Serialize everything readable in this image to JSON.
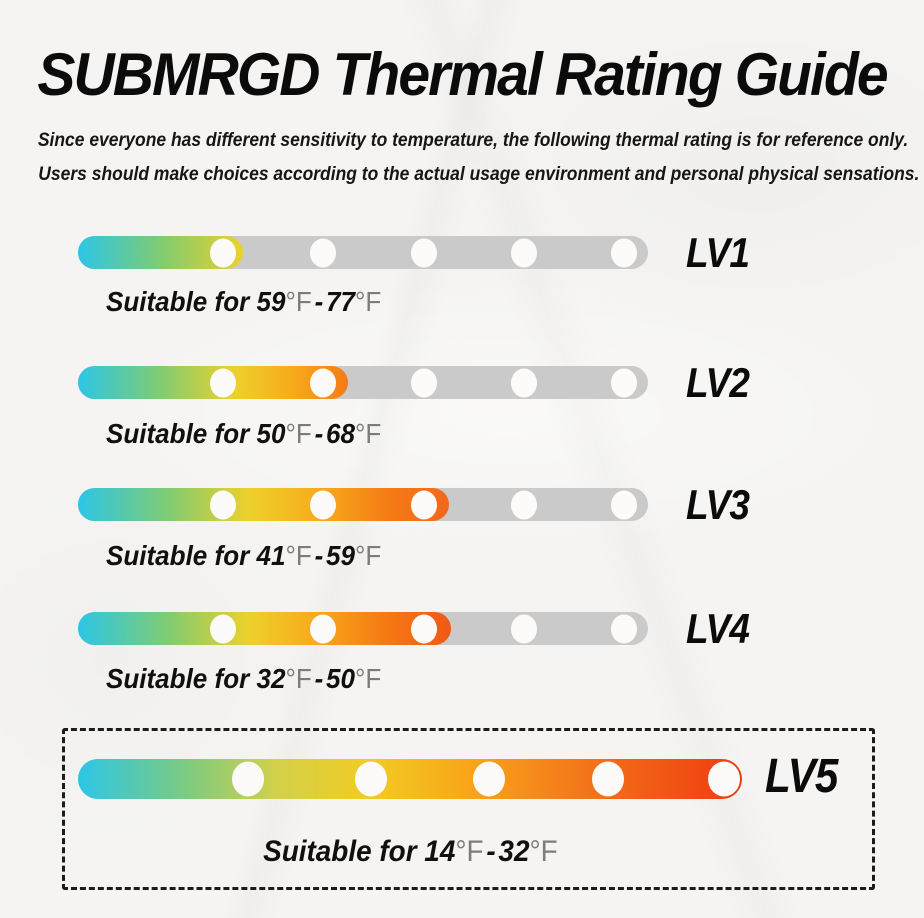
{
  "header": {
    "title": "SUBMRGD Thermal Rating Guide",
    "subtitle_line1": "Since everyone has different sensitivity to temperature, the following thermal rating is for reference only.",
    "subtitle_line2": "Users should make choices according to the actual usage environment and personal physical sensations."
  },
  "degree_unit": "°F",
  "separator": "-",
  "levels": [
    {
      "label": "LV1",
      "prefix": "Suitable for",
      "low": "59",
      "high": "77",
      "fill_percent": 29,
      "dots_total": 5,
      "dots_covered": 1,
      "gradient": "linear-gradient(90deg,#2cc6e7 0%,#83cc6e 52%,#edd12b 100%)"
    },
    {
      "label": "LV2",
      "prefix": "Suitable for",
      "low": "50",
      "high": "68",
      "fill_percent": 47.4,
      "dots_total": 5,
      "dots_covered": 2,
      "gradient": "linear-gradient(90deg,#2cc6e7 0%,#7fcc73 30%,#edd12b 58%,#f8a91b 80%,#f57b14 100%)"
    },
    {
      "label": "LV3",
      "prefix": "Suitable for",
      "low": "41",
      "high": "59",
      "fill_percent": 65.1,
      "dots_total": 5,
      "dots_covered": 3,
      "gradient": "linear-gradient(90deg,#2cc6e7 0%,#7fcc73 24%,#edd12b 46%,#f8a91b 66%,#f57b14 84%,#f2671c 100%)"
    },
    {
      "label": "LV4",
      "prefix": "Suitable for",
      "low": "32",
      "high": "50",
      "fill_percent": 65.4,
      "dots_total": 5,
      "dots_covered": 3,
      "gradient": "linear-gradient(90deg,#2cc6e7 0%,#7fcc73 24%,#edd12b 46%,#f8a91b 64%,#f57b14 82%,#f05817 100%)"
    },
    {
      "label": "LV5",
      "prefix": "Suitable for",
      "low": "14",
      "high": "32",
      "fill_percent": 100,
      "dots_total": 5,
      "dots_covered": 5,
      "gradient": "linear-gradient(90deg,#2cc6e7 0%,#7bcb82 16%,#d3d14a 30%,#f2cb21 44%,#f8a81a 58%,#f5811a 72%,#f15c15 86%,#ee3b10 100%)"
    }
  ],
  "colors": {
    "background": "#f5f4f2",
    "track": "#cbcaca",
    "dot": "#fcfbfa",
    "text_primary": "#0e0e0e",
    "degree_text": "#7c7c7c",
    "dashed_border": "#1c1c1c",
    "gradient_start": "#2cc6e7",
    "gradient_end_max": "#ee3b10"
  }
}
